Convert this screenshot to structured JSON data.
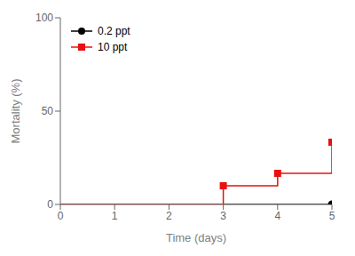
{
  "chart_data": {
    "type": "line",
    "xlabel": "Time (days)",
    "ylabel": "Mortality (%)",
    "xlim": [
      0,
      5
    ],
    "ylim": [
      0,
      100
    ],
    "xticks": [
      0,
      1,
      2,
      3,
      4,
      5
    ],
    "yticks": [
      0,
      50,
      100
    ],
    "grid": false,
    "legend": "upper left",
    "series": [
      {
        "name": "0.2 ppt",
        "color": "#000000",
        "marker": "circle",
        "x": [
          0,
          5
        ],
        "values": [
          0,
          0
        ],
        "marker_x": [
          5
        ],
        "marker_values": [
          0
        ]
      },
      {
        "name": "10 ppt",
        "color": "#e81010",
        "marker": "square",
        "x": [
          0,
          3,
          3,
          4,
          4,
          5,
          5
        ],
        "values": [
          0,
          0,
          10.0,
          10.0,
          16.67,
          16.67,
          33.33
        ],
        "marker_x": [
          3,
          4,
          5
        ],
        "marker_values": [
          10.0,
          16.67,
          33.33
        ]
      }
    ]
  }
}
